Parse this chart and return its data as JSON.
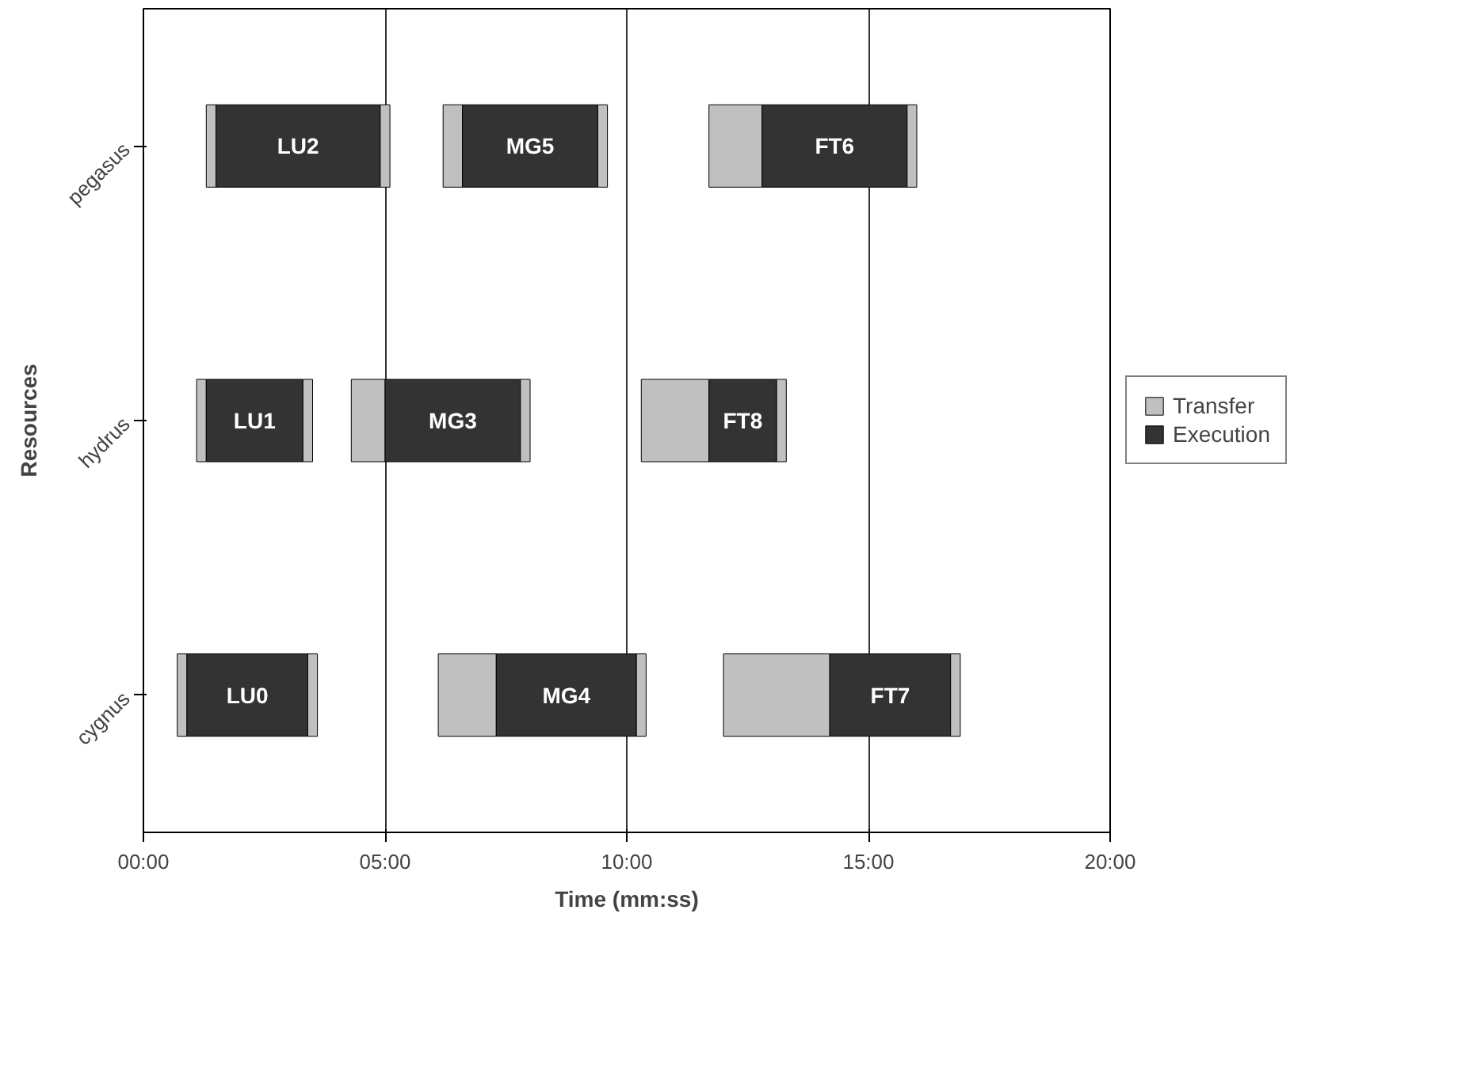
{
  "chart_data": {
    "type": "bar",
    "orientation": "horizontal",
    "xlabel": "Time (mm:ss)",
    "ylabel": "Resources",
    "categories": [
      "pegasus",
      "hydrus",
      "cygnus"
    ],
    "xlim": [
      0,
      20
    ],
    "xticks": [
      {
        "value": 0,
        "label": "00:00"
      },
      {
        "value": 5,
        "label": "05:00"
      },
      {
        "value": 10,
        "label": "10:00"
      },
      {
        "value": 15,
        "label": "15:00"
      },
      {
        "value": 20,
        "label": "20:00"
      }
    ],
    "grid": "x",
    "legend": "right",
    "series": [
      {
        "name": "Transfer",
        "color": "#c0c0c0",
        "base": [
          1.3,
          1.1,
          0.7
        ],
        "values": [
          0.2,
          0.2,
          0.2
        ]
      },
      {
        "name": "Execution",
        "color": "#333333",
        "base": [
          1.5,
          1.3,
          0.9
        ],
        "values": [
          3.4,
          2.0,
          2.5
        ],
        "value_labels": [
          "LU2",
          "LU1",
          "LU0"
        ]
      },
      {
        "color": "#c0c0c0",
        "base": [
          4.9,
          3.3,
          3.4
        ],
        "values": [
          0.2,
          0.2,
          0.2
        ]
      },
      {
        "color": "#c0c0c0",
        "base": [
          6.2,
          4.3,
          6.1
        ],
        "values": [
          0.4,
          0.7,
          1.2
        ]
      },
      {
        "color": "#333333",
        "base": [
          6.6,
          5.0,
          7.3
        ],
        "values": [
          2.8,
          2.8,
          2.9
        ],
        "value_labels": [
          "MG5",
          "MG3",
          "MG4"
        ]
      },
      {
        "color": "#c0c0c0",
        "base": [
          9.4,
          7.8,
          10.2
        ],
        "values": [
          0.2,
          0.2,
          0.2
        ]
      },
      {
        "color": "#c0c0c0",
        "base": [
          11.7,
          10.3,
          12.0
        ],
        "values": [
          1.1,
          1.4,
          2.2
        ]
      },
      {
        "color": "#333333",
        "base": [
          12.8,
          11.7,
          14.2
        ],
        "values": [
          3.0,
          1.4,
          2.5
        ],
        "value_labels": [
          "FT6",
          "FT8",
          "FT7"
        ]
      },
      {
        "color": "#c0c0c0",
        "base": [
          15.8,
          13.1,
          16.7
        ],
        "values": [
          0.2,
          0.2,
          0.2
        ]
      }
    ]
  }
}
